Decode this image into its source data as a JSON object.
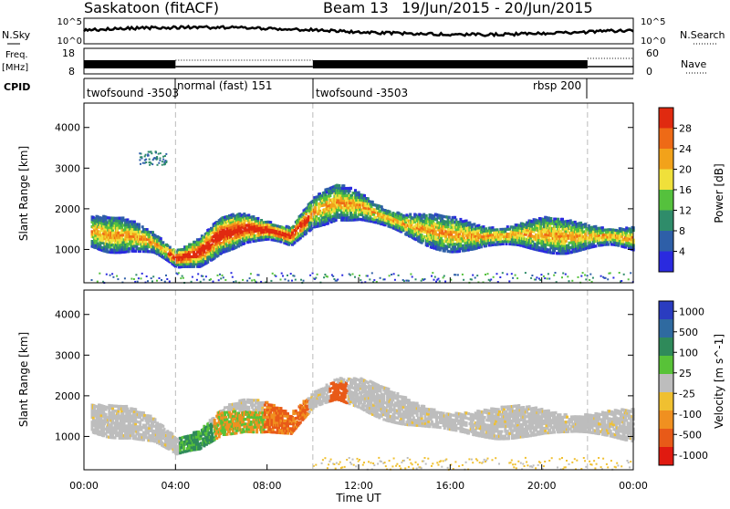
{
  "header": {
    "station": "Saskatoon (fitACF)",
    "beam": "Beam 13",
    "date_range": "19/Jun/2015 - 20/Jun/2015"
  },
  "side_labels": {
    "nsky": "N.Sky",
    "freq_line1": "Freq.",
    "freq_line2": "[MHz]",
    "cpid": "CPID",
    "nsearch": "N.Search",
    "nave": "Nave"
  },
  "small_axes": {
    "nsky_left_ticks": [
      "10^5",
      "10^0"
    ],
    "nsky_right_ticks": [
      "10^5",
      "10^0"
    ],
    "freq_left_ticks": [
      "18",
      "8"
    ],
    "nave_right_ticks": [
      "60",
      "0"
    ]
  },
  "cpid_segments": [
    {
      "label": "twofsound -3503",
      "start_hour": 0
    },
    {
      "label": "normal (fast) 151",
      "start_hour": 4
    },
    {
      "label": "twofsound -3503",
      "start_hour": 10
    },
    {
      "label": "rbsp 200",
      "start_hour": 22
    }
  ],
  "colors": {
    "power_scale": [
      "#2a2adf",
      "#2e5fa8",
      "#2f8c6a",
      "#55c13d",
      "#f0e03a",
      "#f2a21a",
      "#ee6a16",
      "#e02a10"
    ],
    "velocity_scale": [
      "#2a3cc0",
      "#2f6aa0",
      "#2f8a5a",
      "#58c238",
      "#bdbdbd",
      "#f0c030",
      "#f09020",
      "#e85a18",
      "#e01a10"
    ],
    "grey": "#bbbbbb"
  },
  "chart_data": [
    {
      "type": "heatmap",
      "name": "Power",
      "xlabel": "",
      "ylabel": "Slant Range [km]",
      "xlim_hours": [
        0,
        24
      ],
      "ylim_km": [
        180,
        4600
      ],
      "y_ticks": [
        1000,
        2000,
        3000,
        4000
      ],
      "colorbar_label": "Power [dB]",
      "colorbar_ticks": [
        "4",
        "8",
        "12",
        "16",
        "20",
        "24",
        "28"
      ],
      "colorbar_range": [
        0,
        32
      ],
      "band_center_km": [
        [
          0,
          1450
        ],
        [
          1,
          1350
        ],
        [
          2,
          1320
        ],
        [
          3,
          1150
        ],
        [
          4,
          750
        ],
        [
          5,
          900
        ],
        [
          6,
          1350
        ],
        [
          7,
          1500
        ],
        [
          8,
          1450
        ],
        [
          9,
          1300
        ],
        [
          10,
          1900
        ],
        [
          11,
          2150
        ],
        [
          12,
          2050
        ],
        [
          13,
          1800
        ],
        [
          14,
          1600
        ],
        [
          15,
          1450
        ],
        [
          16,
          1350
        ],
        [
          17,
          1300
        ],
        [
          18,
          1300
        ],
        [
          19,
          1350
        ],
        [
          20,
          1350
        ],
        [
          21,
          1300
        ],
        [
          22,
          1300
        ],
        [
          23,
          1300
        ],
        [
          24,
          1250
        ]
      ]
    },
    {
      "type": "heatmap",
      "name": "Velocity",
      "xlabel": "Time UT",
      "ylabel": "Slant Range [km]",
      "xlim_hours": [
        0,
        24
      ],
      "ylim_km": [
        180,
        4600
      ],
      "x_ticks": [
        "00:00",
        "04:00",
        "08:00",
        "12:00",
        "16:00",
        "20:00",
        "00:00"
      ],
      "y_ticks": [
        1000,
        2000,
        3000,
        4000
      ],
      "colorbar_label": "Velocity [m s^-1]",
      "colorbar_ticks": [
        "1000",
        "500",
        "100",
        "25",
        "-25",
        "-100",
        "-500",
        "-1000"
      ]
    }
  ]
}
